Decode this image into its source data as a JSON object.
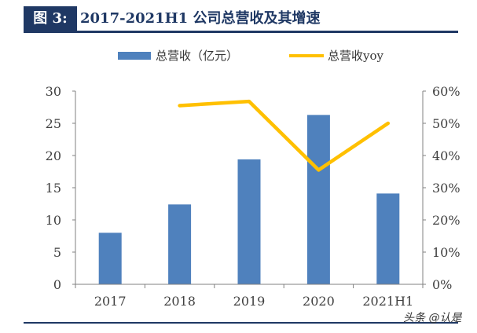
{
  "figure": {
    "tag": "图 3:",
    "title": "2017-2021H1 公司总营收及其增速"
  },
  "chart_data": {
    "type": "bar",
    "categories": [
      "2017",
      "2018",
      "2019",
      "2020",
      "2021H1"
    ],
    "series": [
      {
        "name": "总营收（亿元）",
        "type": "bar",
        "axis": "left",
        "values": [
          8.0,
          12.4,
          19.4,
          26.3,
          14.1
        ]
      },
      {
        "name": "总营收yoy",
        "type": "line",
        "axis": "right",
        "values": [
          null,
          55.5,
          56.8,
          35.5,
          50.0
        ]
      }
    ],
    "y_left": {
      "ylim": [
        0,
        30
      ],
      "ticks": [
        "0",
        "5",
        "10",
        "15",
        "20",
        "25",
        "30"
      ]
    },
    "y_right": {
      "ylim": [
        0,
        60
      ],
      "ticks": [
        "0%",
        "10%",
        "20%",
        "30%",
        "40%",
        "50%",
        "60%"
      ]
    },
    "colors": {
      "bar": "#4f81bd",
      "line": "#ffc000"
    },
    "grid": false,
    "legend": "top-center"
  },
  "watermark": "头条 @认是"
}
